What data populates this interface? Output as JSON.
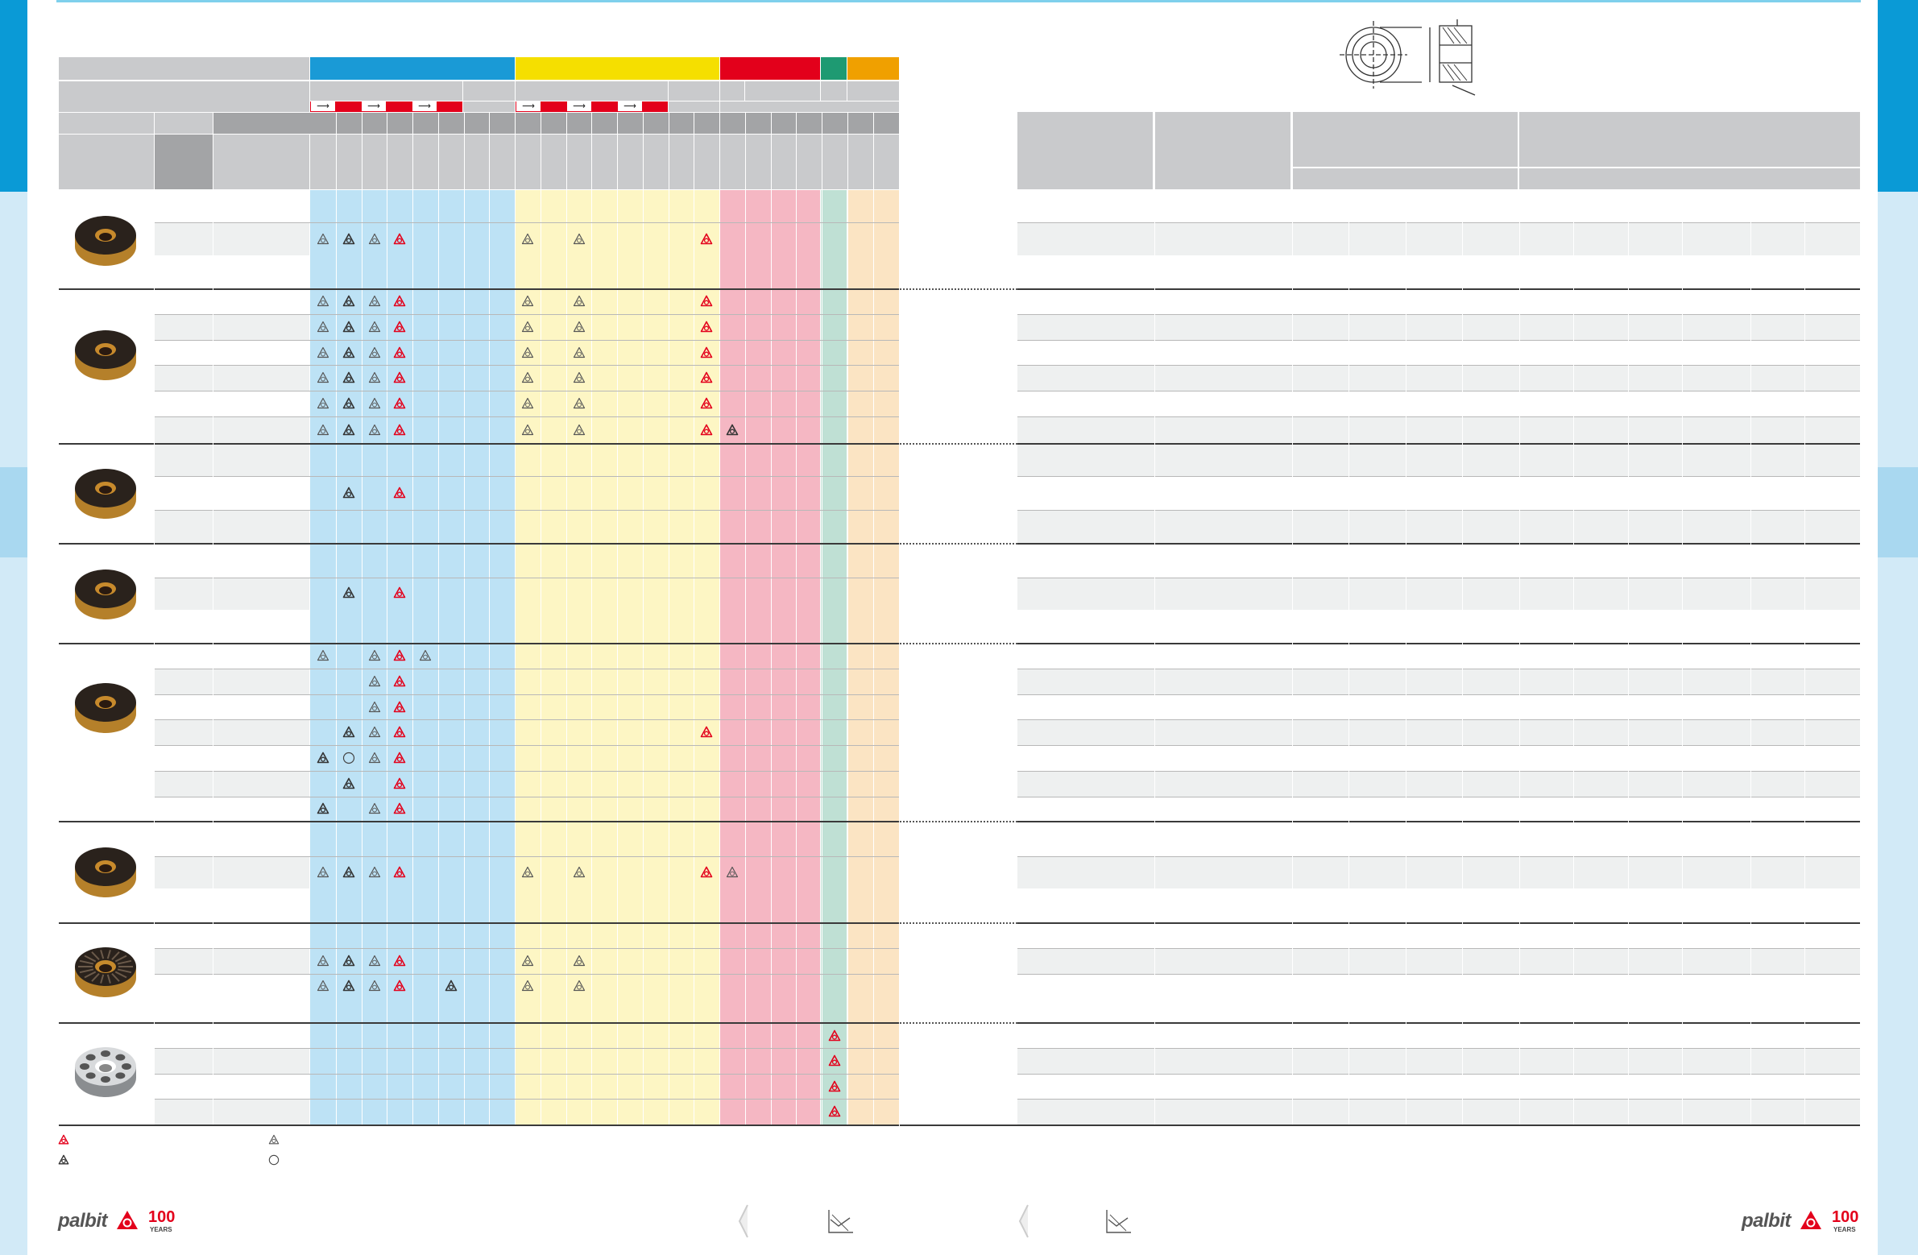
{
  "colors": {
    "tab_blue": "#0a9ad6",
    "tab_light": "#cfe8f5",
    "iso_p": "#1a9ad6",
    "iso_m": "#f5df00",
    "iso_k": "#e3001b",
    "iso_n": "#1e9a72",
    "iso_s": "#f0a000",
    "p_zone": "#bde2f5",
    "m_zone": "#fdf6c4",
    "k_zone": "#f5b7c3",
    "n_zone": "#bfe0d4",
    "s_zone": "#fbe4c3",
    "row_shade": "#eef0f0",
    "recommended_mark": "#e3001b",
    "standard_mark": "#333333"
  },
  "icons": {
    "recommended": "recommended-triangle-icon",
    "alternative": "alternative-triangle-icon",
    "standard": "standard-triangle-icon",
    "on_request": "open-circle-icon",
    "flow_arrow": "arrow-right-icon",
    "page_prev": "chevron-left-icon",
    "graph": "cutting-graph-icon"
  },
  "legend": {
    "recommended": "",
    "standard": "",
    "alternative": "",
    "on_request": ""
  },
  "footer": {
    "brand_left": "palbit",
    "years_left": "100",
    "years_label_left": "YEARS",
    "brand_right": "palbit",
    "years_right": "100",
    "years_label_right": "YEARS"
  }
}
